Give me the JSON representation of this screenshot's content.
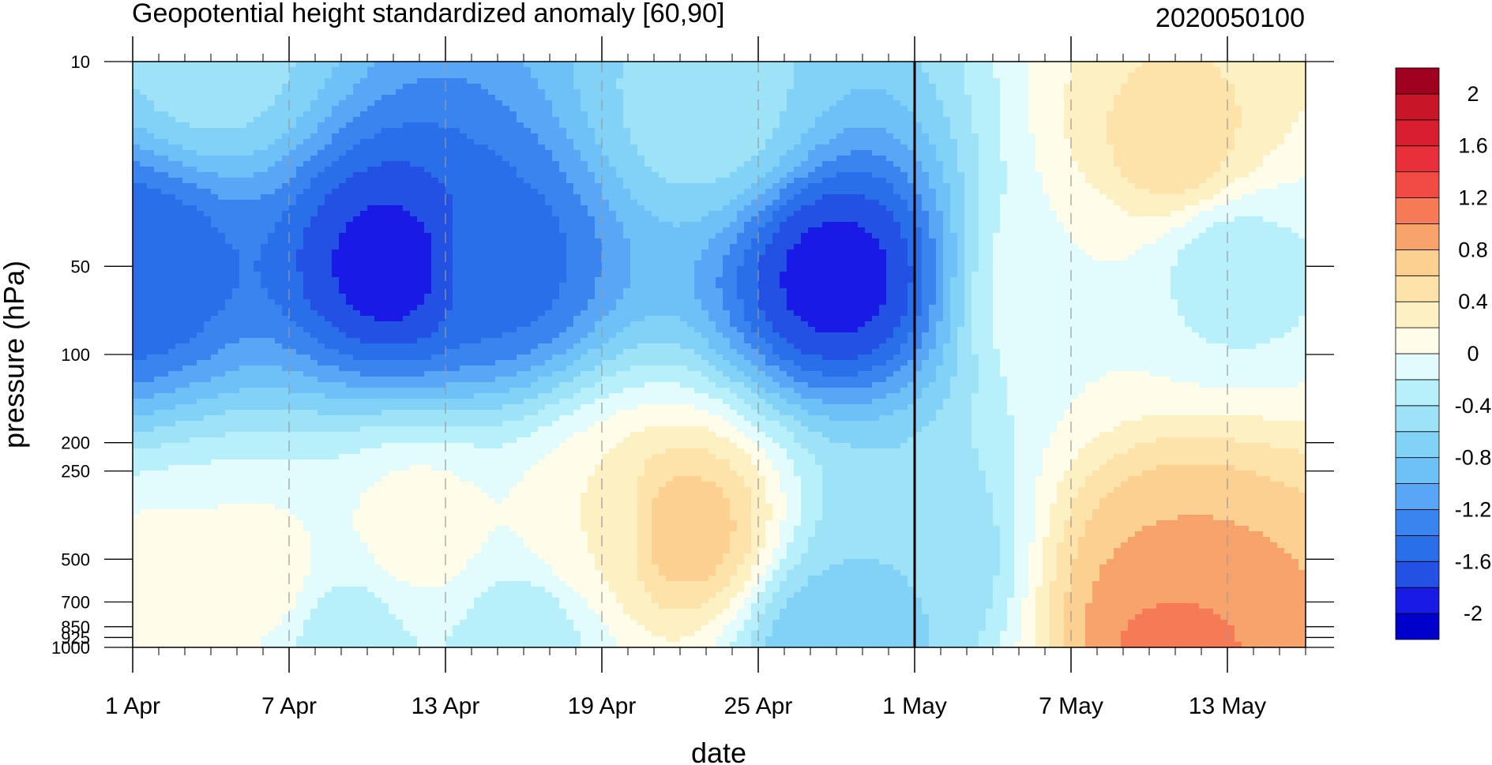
{
  "chart_data": {
    "type": "heatmap",
    "subtype": "filled-contour time-pressure section",
    "title": "Geopotential height standardized anomaly [60,90]",
    "right_title": "2020050100",
    "xlabel": "date",
    "ylabel": "pressure (hPa)",
    "y_scale": "log",
    "y_reversed": true,
    "ylim": [
      1000,
      10
    ],
    "xlim": [
      "2020-04-01",
      "2020-05-16"
    ],
    "x_ticks": [
      {
        "date": "2020-04-01",
        "label": "1 Apr"
      },
      {
        "date": "2020-04-07",
        "label": "7 Apr"
      },
      {
        "date": "2020-04-13",
        "label": "13 Apr"
      },
      {
        "date": "2020-04-19",
        "label": "19 Apr"
      },
      {
        "date": "2020-04-25",
        "label": "25 Apr"
      },
      {
        "date": "2020-05-01",
        "label": "1 May"
      },
      {
        "date": "2020-05-07",
        "label": "7 May"
      },
      {
        "date": "2020-05-13",
        "label": "13 May"
      }
    ],
    "y_ticks": [
      {
        "value": 10,
        "label": "10"
      },
      {
        "value": 50,
        "label": "50"
      },
      {
        "value": 100,
        "label": "100"
      },
      {
        "value": 200,
        "label": "200"
      },
      {
        "value": 250,
        "label": "250"
      },
      {
        "value": 500,
        "label": "500"
      },
      {
        "value": 700,
        "label": "700"
      },
      {
        "value": 850,
        "label": "850"
      },
      {
        "value": 925,
        "label": "925"
      },
      {
        "value": 1000,
        "label": "1000"
      }
    ],
    "reference_line": {
      "date": "2020-05-01"
    },
    "dashed_gridlines": true,
    "colorbar": {
      "levels": [
        -2.2,
        -2,
        -1.8,
        -1.6,
        -1.4,
        -1.2,
        -1,
        -0.8,
        -0.6,
        -0.4,
        -0.2,
        0,
        0.2,
        0.4,
        0.6,
        0.8,
        1,
        1.2,
        1.4,
        1.6,
        1.8,
        2,
        2.2
      ],
      "colors": [
        "#0000cd",
        "#1a1ae6",
        "#2351e3",
        "#2a6fea",
        "#3a84f0",
        "#5aa6f6",
        "#6dc1f6",
        "#82d2f7",
        "#9ee2f7",
        "#b7effa",
        "#e2fbfd",
        "#fffdea",
        "#fdf0c2",
        "#fde2a9",
        "#fcd090",
        "#f9a36c",
        "#f77a57",
        "#f24b44",
        "#e9303a",
        "#d91e30",
        "#c81528",
        "#a0001f"
      ],
      "labels": [
        {
          "value": 2,
          "label": "2"
        },
        {
          "value": 1.6,
          "label": "1.6"
        },
        {
          "value": 1.2,
          "label": "1.2"
        },
        {
          "value": 0.8,
          "label": "0.8"
        },
        {
          "value": 0.4,
          "label": "0.4"
        },
        {
          "value": 0,
          "label": "0"
        },
        {
          "value": -0.4,
          "label": "-0.4"
        },
        {
          "value": -0.8,
          "label": "-0.8"
        },
        {
          "value": -1.2,
          "label": "-1.2"
        },
        {
          "value": -1.6,
          "label": "-1.6"
        },
        {
          "value": -2,
          "label": "-2"
        }
      ]
    },
    "anomaly_centers": [
      {
        "date": "2020-04-01",
        "pressure": 50,
        "value": -1.6
      },
      {
        "date": "2020-04-11",
        "pressure": 50,
        "value": -1.9
      },
      {
        "date": "2020-04-15",
        "pressure": 50,
        "value": -1.5
      },
      {
        "date": "2020-04-28",
        "pressure": 55,
        "value": -1.9
      },
      {
        "date": "2020-04-04",
        "pressure": 10,
        "value": -0.5
      },
      {
        "date": "2020-04-23",
        "pressure": 15,
        "value": -0.5
      },
      {
        "date": "2020-05-01",
        "pressure": 500,
        "value": -0.6
      },
      {
        "date": "2020-04-28",
        "pressure": 1000,
        "value": -0.8
      },
      {
        "date": "2020-04-22",
        "pressure": 400,
        "value": 0.75
      },
      {
        "date": "2020-04-19",
        "pressure": 400,
        "value": 0.2
      },
      {
        "date": "2020-04-06",
        "pressure": 600,
        "value": 0.1
      },
      {
        "date": "2020-04-02",
        "pressure": 700,
        "value": 0.1
      },
      {
        "date": "2020-04-12",
        "pressure": 400,
        "value": 0.1
      },
      {
        "date": "2020-05-11",
        "pressure": 20,
        "value": 0.5
      },
      {
        "date": "2020-05-11",
        "pressure": 550,
        "value": 0.8
      },
      {
        "date": "2020-05-11",
        "pressure": 850,
        "value": 1.1
      },
      {
        "date": "2020-05-13",
        "pressure": 50,
        "value": -0.3
      },
      {
        "date": "2020-05-07",
        "pressure": 60,
        "value": 0.0
      },
      {
        "date": "2020-04-09",
        "pressure": 900,
        "value": -0.3
      },
      {
        "date": "2020-04-16",
        "pressure": 900,
        "value": -0.3
      }
    ]
  }
}
